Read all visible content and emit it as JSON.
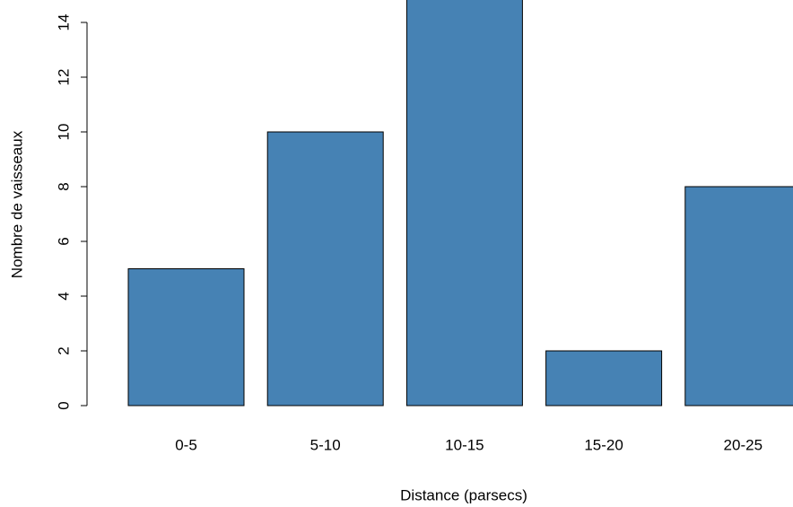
{
  "chart_data": {
    "type": "bar",
    "x_label": "Distance (parsecs)",
    "y_label": "Nombre de vaisseaux",
    "categories": [
      "0-5",
      "5-10",
      "10-15",
      "15-20",
      "20-25"
    ],
    "values": [
      5,
      10,
      15,
      2,
      8
    ],
    "color": "#4682b4",
    "ylim": [
      0,
      14
    ],
    "yticks": [
      0,
      2,
      4,
      6,
      8,
      10,
      12,
      14
    ]
  }
}
